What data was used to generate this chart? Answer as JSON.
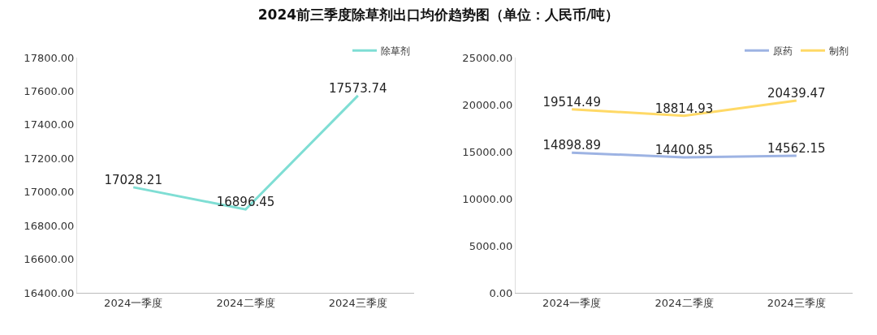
{
  "chart_data": [
    {
      "type": "line",
      "title": "2024前三季度除草剂出口均价趋势图（单位：人民币/吨）",
      "categories": [
        "2024一季度",
        "2024二季度",
        "2024三季度"
      ],
      "series": [
        {
          "name": "除草剂",
          "color": "#7fded4",
          "values": [
            17028.21,
            16896.45,
            17573.74
          ]
        }
      ],
      "ylim": [
        16400,
        17800
      ],
      "yticks": [
        {
          "value": 16400,
          "label": "16400.00"
        },
        {
          "value": 16600,
          "label": "16600.00"
        },
        {
          "value": 16800,
          "label": "16800.00"
        },
        {
          "value": 17000,
          "label": "17000.00"
        },
        {
          "value": 17200,
          "label": "17200.00"
        },
        {
          "value": 17400,
          "label": "17400.00"
        },
        {
          "value": 17600,
          "label": "17600.00"
        },
        {
          "value": 17800,
          "label": "17800.00"
        }
      ],
      "grid": false,
      "legend": "top right",
      "data_labels": true,
      "marker": "none",
      "line_style": "solid"
    },
    {
      "type": "line",
      "categories": [
        "2024一季度",
        "2024二季度",
        "2024三季度"
      ],
      "series": [
        {
          "name": "原药",
          "color": "#9db3e3",
          "values": [
            14898.89,
            14400.85,
            14562.15
          ]
        },
        {
          "name": "制剂",
          "color": "#ffd966",
          "values": [
            19514.49,
            18814.93,
            20439.47
          ]
        }
      ],
      "ylim": [
        0,
        25000
      ],
      "yticks": [
        {
          "value": 0,
          "label": "0.00"
        },
        {
          "value": 5000,
          "label": "5000.00"
        },
        {
          "value": 10000,
          "label": "10000.00"
        },
        {
          "value": 15000,
          "label": "15000.00"
        },
        {
          "value": 20000,
          "label": "20000.00"
        },
        {
          "value": 25000,
          "label": "25000.00"
        }
      ],
      "grid": false,
      "legend": "top right",
      "data_labels": true,
      "marker": "none",
      "line_style": "solid"
    }
  ]
}
